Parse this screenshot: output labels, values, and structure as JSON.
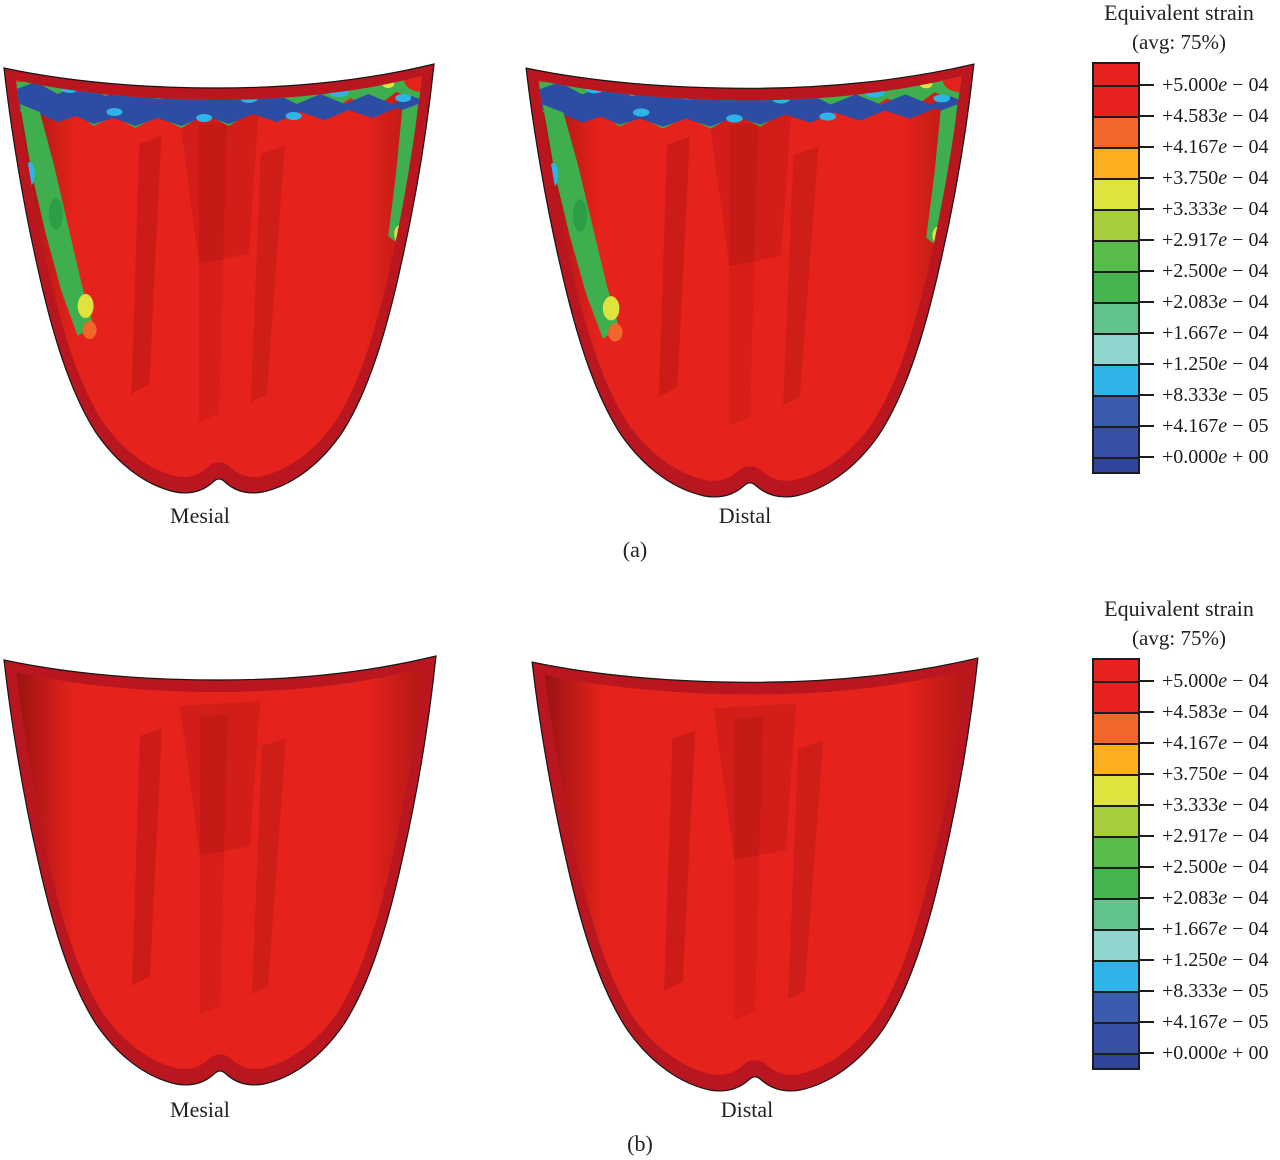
{
  "figure": {
    "panels": [
      {
        "caption": "(a)",
        "views": [
          {
            "label": "Mesial"
          },
          {
            "label": "Distal"
          }
        ]
      },
      {
        "caption": "(b)",
        "views": [
          {
            "label": "Mesial"
          },
          {
            "label": "Distal"
          }
        ]
      }
    ]
  },
  "legend": {
    "title": "Equivalent strain",
    "subtitle": "(avg: 75%)",
    "e_char": "e",
    "blocks": [
      {
        "color": "#e8231f"
      },
      {
        "color": "#e8231f"
      },
      {
        "color": "#f1662a"
      },
      {
        "color": "#fbaf1d"
      },
      {
        "color": "#dfe33d"
      },
      {
        "color": "#a6ce3c"
      },
      {
        "color": "#58bc4b"
      },
      {
        "color": "#46b550"
      },
      {
        "color": "#63c38c"
      },
      {
        "color": "#8fd6cf"
      },
      {
        "color": "#2fb4e8"
      },
      {
        "color": "#3a5cad"
      },
      {
        "color": "#3750a4"
      },
      {
        "color": "#30459a"
      }
    ],
    "ticks": [
      {
        "m": "+5.000",
        "x": "− 04"
      },
      {
        "m": "+4.583",
        "x": "− 04"
      },
      {
        "m": "+4.167",
        "x": "− 04"
      },
      {
        "m": "+3.750",
        "x": "− 04"
      },
      {
        "m": "+3.333",
        "x": "− 04"
      },
      {
        "m": "+2.917",
        "x": "− 04"
      },
      {
        "m": "+2.500",
        "x": "− 04"
      },
      {
        "m": "+2.083",
        "x": "− 04"
      },
      {
        "m": "+1.667",
        "x": "− 04"
      },
      {
        "m": "+1.250",
        "x": "− 04"
      },
      {
        "m": "+8.333",
        "x": "− 05"
      },
      {
        "m": "+4.167",
        "x": "− 05"
      },
      {
        "m": "+0.000",
        "x": "+ 00"
      }
    ]
  },
  "model": {
    "surface_red": "#e5221b",
    "rim_red": "#b9161f",
    "band_green": "#3fae4e",
    "band_blue": "#2c4da3",
    "band_cyan": "#2fb4e8",
    "band_yellow": "#dfe33d",
    "band_orange": "#f1662a"
  }
}
